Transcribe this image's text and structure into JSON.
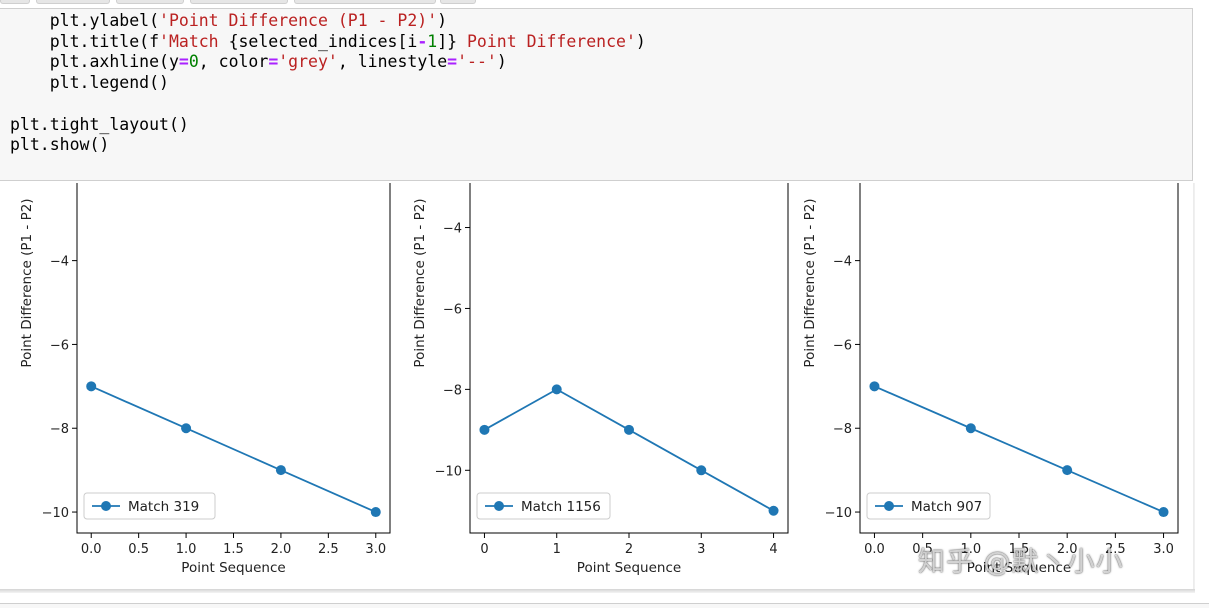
{
  "code_lines": [
    [
      [
        "    plt.ylabel(",
        ""
      ],
      [
        "'Point Difference (P1 - P2)'",
        "str"
      ],
      [
        ")",
        ""
      ]
    ],
    [
      [
        "    plt.title(f",
        ""
      ],
      [
        "'Match ",
        "str"
      ],
      [
        "{selected_indices[i",
        ""
      ],
      [
        "-",
        "op"
      ],
      [
        "1",
        "num"
      ],
      [
        "]}",
        ""
      ],
      [
        " Point Difference'",
        "str"
      ],
      [
        ")",
        ""
      ]
    ],
    [
      [
        "    plt.axhline(y",
        ""
      ],
      [
        "=",
        "op"
      ],
      [
        "0",
        "num"
      ],
      [
        ", color",
        ""
      ],
      [
        "=",
        "op"
      ],
      [
        "'grey'",
        "str"
      ],
      [
        ", linestyle",
        ""
      ],
      [
        "=",
        "op"
      ],
      [
        "'--'",
        "str"
      ],
      [
        ")",
        ""
      ]
    ],
    [
      [
        "    plt.legend()",
        ""
      ]
    ],
    [
      [
        "",
        ""
      ]
    ],
    [
      [
        "plt.tight_layout()",
        ""
      ]
    ],
    [
      [
        "plt.show()",
        ""
      ]
    ]
  ],
  "watermark": "知乎 @默丶小小",
  "colors": {
    "series": "#1f77b4",
    "axes": "#000000",
    "text": "#222222"
  },
  "chart_data": [
    {
      "type": "line",
      "title": "",
      "xlabel": "Point Sequence",
      "ylabel": "Point Difference (P1 - P2)",
      "x": [
        0,
        1,
        2,
        3
      ],
      "series": [
        {
          "name": "Match 319",
          "values": [
            -7,
            -8,
            -9,
            -10
          ]
        }
      ],
      "xticks": [
        0.0,
        0.5,
        1.0,
        1.5,
        2.0,
        2.5,
        3.0
      ],
      "xtick_labels": [
        "0.0",
        "0.5",
        "1.0",
        "1.5",
        "2.0",
        "2.5",
        "3.0"
      ],
      "yticks": [
        -10,
        -8,
        -6,
        -4
      ],
      "ytick_labels": [
        "−10",
        "−8",
        "−6",
        "−4"
      ],
      "xlim": [
        -0.15,
        3.15
      ],
      "ylim": [
        -10.5,
        -2.1
      ],
      "legend": "lower-left",
      "marker": "circle"
    },
    {
      "type": "line",
      "title": "",
      "xlabel": "Point Sequence",
      "ylabel": "Point Difference (P1 - P2)",
      "x": [
        0,
        1,
        2,
        3,
        4
      ],
      "series": [
        {
          "name": "Match 1156",
          "values": [
            -9,
            -8,
            -9,
            -10,
            -11
          ]
        }
      ],
      "xticks": [
        0,
        1,
        2,
        3,
        4
      ],
      "xtick_labels": [
        "0",
        "1",
        "2",
        "3",
        "4"
      ],
      "yticks": [
        -10,
        -8,
        -6,
        -4
      ],
      "ytick_labels": [
        "−10",
        "−8",
        "−6",
        "−4"
      ],
      "xlim": [
        -0.2,
        4.2
      ],
      "ylim": [
        -11.55,
        -2.85
      ],
      "legend": "lower-left",
      "marker": "circle"
    },
    {
      "type": "line",
      "title": "",
      "xlabel": "Point Sequence",
      "ylabel": "Point Difference (P1 - P2)",
      "x": [
        0,
        1,
        2,
        3
      ],
      "series": [
        {
          "name": "Match 907",
          "values": [
            -7,
            -8,
            -9,
            -10
          ]
        }
      ],
      "xticks": [
        0.0,
        0.5,
        1.0,
        1.5,
        2.0,
        2.5,
        3.0
      ],
      "xtick_labels": [
        "0.0",
        "0.5",
        "1.0",
        "1.5",
        "2.0",
        "2.5",
        "3.0"
      ],
      "yticks": [
        -10,
        -8,
        -6,
        -4
      ],
      "ytick_labels": [
        "−10",
        "−8",
        "−6",
        "−4"
      ],
      "xlim": [
        -0.15,
        3.15
      ],
      "ylim": [
        -10.5,
        -2.1
      ],
      "legend": "lower-left",
      "marker": "circle"
    }
  ]
}
